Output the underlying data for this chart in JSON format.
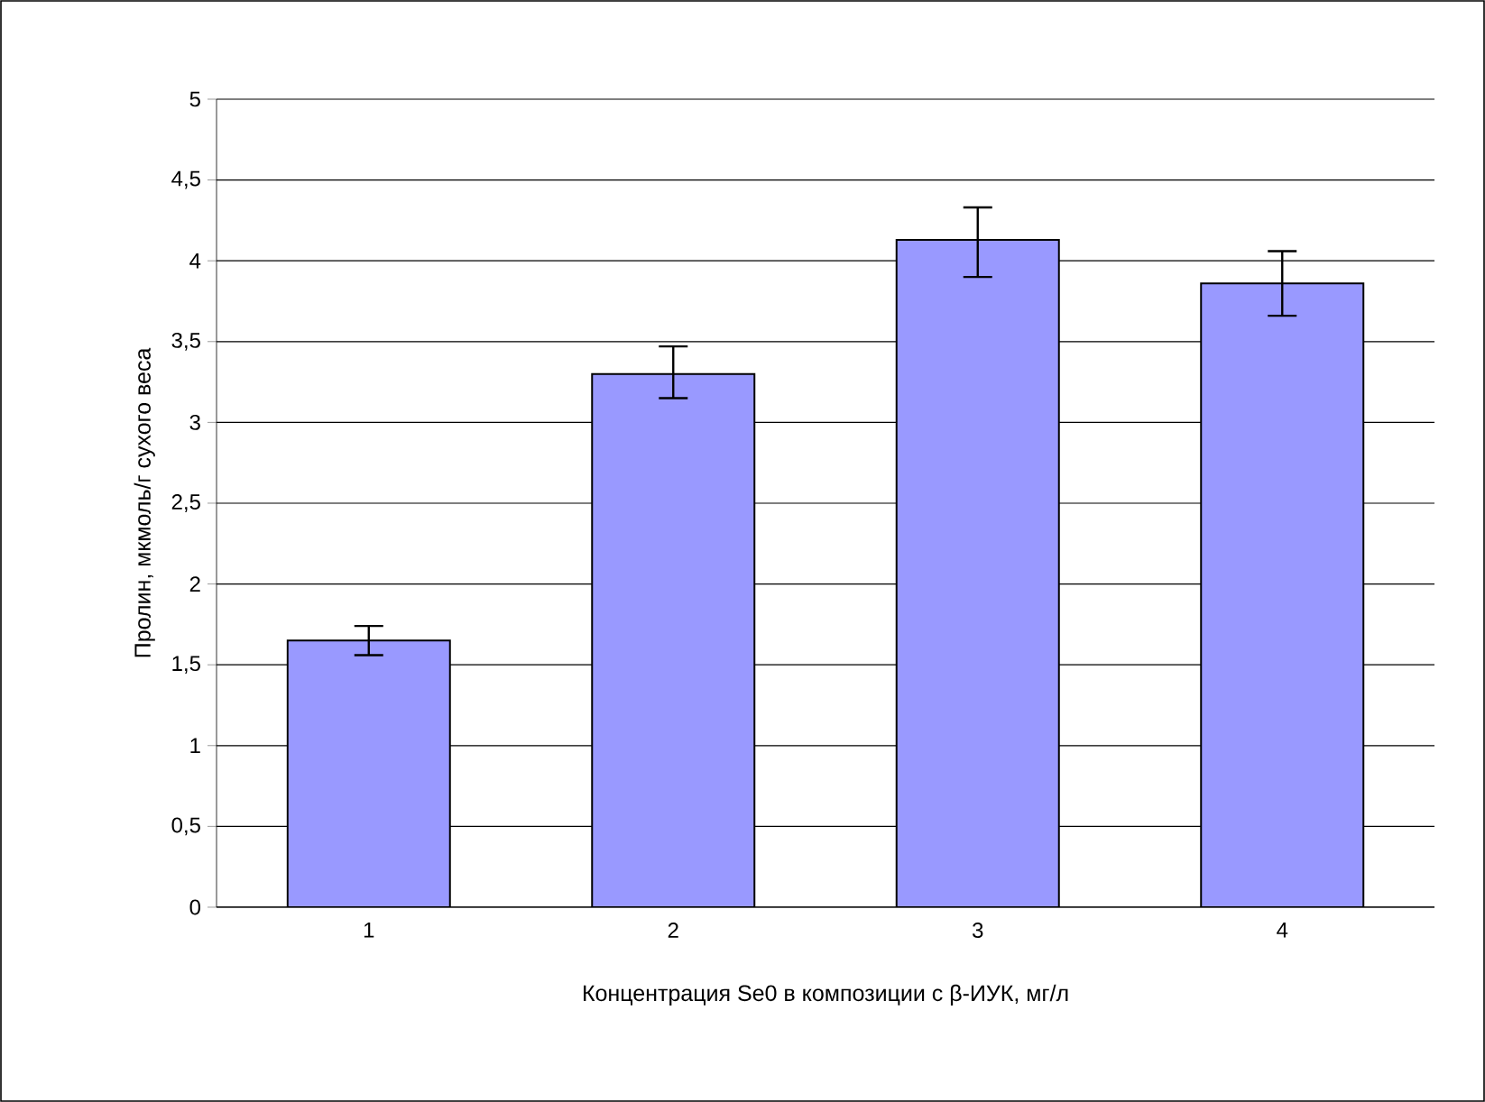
{
  "chart_data": {
    "type": "bar",
    "xlabel": "Концентрация Se0 в композиции с β-ИУК, мг/л",
    "ylabel": "Пролин, мкмоль/г сухого веса",
    "categories": [
      "1",
      "2",
      "3",
      "4"
    ],
    "values": [
      1.65,
      3.3,
      4.13,
      3.86
    ],
    "errors": [
      [
        1.56,
        1.74
      ],
      [
        3.15,
        3.47
      ],
      [
        3.9,
        4.33
      ],
      [
        3.66,
        4.06
      ]
    ],
    "color": "#9999ff",
    "ylim": [
      0,
      5
    ],
    "yticks": [
      0,
      {
        "value": 0.5,
        "label": "0,5"
      },
      1,
      {
        "value": 1.5,
        "label": "1,5"
      },
      2,
      {
        "value": 2.5,
        "label": "2,5"
      },
      3,
      {
        "value": 3.5,
        "label": "3,5"
      },
      4,
      {
        "value": 4.5,
        "label": "4,5"
      },
      5
    ],
    "grid": "y"
  }
}
